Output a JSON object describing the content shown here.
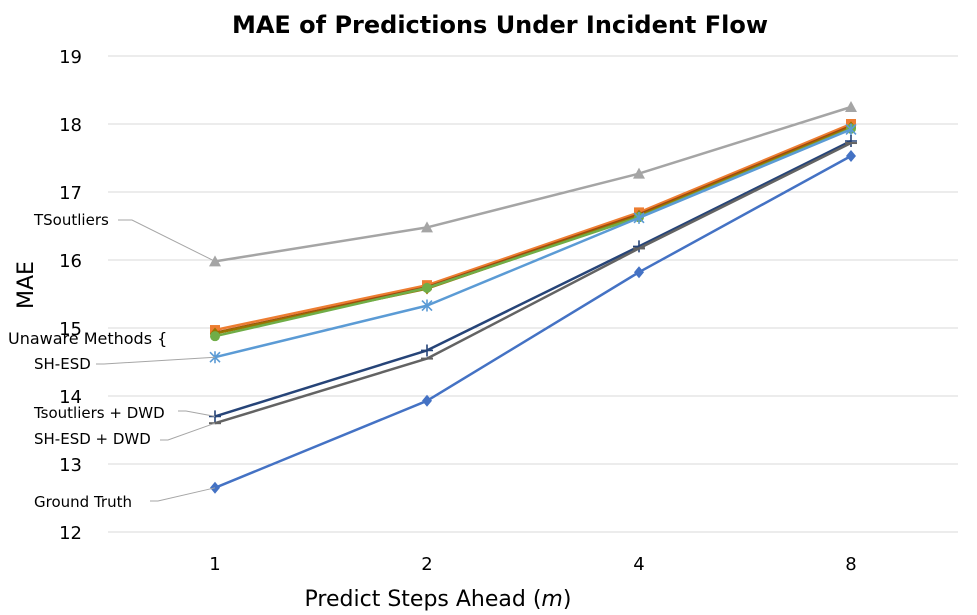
{
  "chart_data": {
    "type": "line",
    "title": "MAE of Predictions Under Incident Flow",
    "xlabel_text": "Predict Steps Ahead (",
    "xlabel_var": "m",
    "xlabel_end": ")",
    "ylabel": "MAE",
    "categories": [
      "1",
      "2",
      "4",
      "8"
    ],
    "ylim": [
      12,
      19
    ],
    "yticks": [
      12,
      13,
      14,
      15,
      16,
      17,
      18,
      19
    ],
    "grid": true,
    "series": [
      {
        "name": "TSoutliers",
        "color": "#a5a5a5",
        "marker": "triangle",
        "values": [
          15.98,
          16.48,
          17.27,
          18.25
        ]
      },
      {
        "color": "#ed7d31",
        "marker": "square",
        "values": [
          14.97,
          15.63,
          16.7,
          18.0
        ]
      },
      {
        "color": "#9e480e",
        "marker": "none",
        "values": [
          14.93,
          15.6,
          16.67,
          17.97
        ]
      },
      {
        "color": "#997300",
        "marker": "diamond",
        "values": [
          14.92,
          15.58,
          16.65,
          17.95
        ]
      },
      {
        "color": "#70ad47",
        "marker": "circle",
        "values": [
          14.88,
          15.59,
          16.63,
          17.93
        ]
      },
      {
        "name": "SH-ESD",
        "color": "#5b9bd5",
        "marker": "asterisk",
        "values": [
          14.57,
          15.33,
          16.62,
          17.92
        ]
      },
      {
        "name": "Tsoutliers + DWD",
        "color": "#264478",
        "marker": "plus",
        "values": [
          13.7,
          14.67,
          16.2,
          17.75
        ]
      },
      {
        "name": "SH-ESD + DWD",
        "color": "#636363",
        "marker": "dash",
        "values": [
          13.6,
          14.55,
          16.17,
          17.72
        ]
      },
      {
        "name": "Ground Truth",
        "color": "#4472c4",
        "marker": "diamond",
        "values": [
          12.65,
          13.93,
          15.82,
          17.53
        ]
      }
    ],
    "annotations": {
      "group_label": "Unaware Methods {",
      "group_color": "#ed7d31"
    }
  }
}
